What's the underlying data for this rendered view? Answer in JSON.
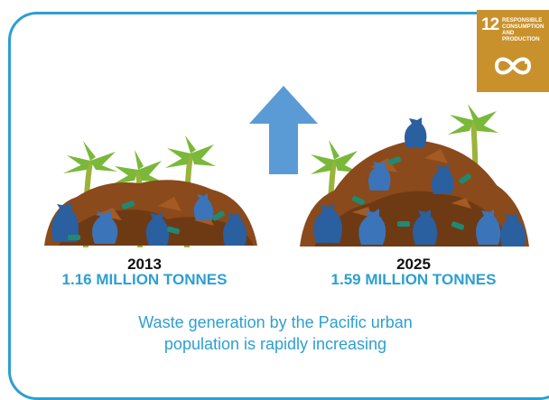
{
  "badge": {
    "number": "12",
    "title_lines": [
      "RESPONSIBLE",
      "CONSUMPTION",
      "AND PRODUCTION"
    ],
    "icon": "infinity-loop-icon",
    "color": "#c9912c"
  },
  "left": {
    "year": "2013",
    "amount": "1.16 MILLION TONNES"
  },
  "right": {
    "year": "2025",
    "amount": "1.59 MILLION TONNES"
  },
  "caption_lines": [
    "Waste generation by the Pacific urban",
    "population is rapidly increasing"
  ],
  "colors": {
    "accent": "#2e9fd1",
    "arrow": "#5b9bd5",
    "dirt": "#8a4a1c",
    "bag": "#2a5fa0",
    "palm": "#7ab83a"
  }
}
